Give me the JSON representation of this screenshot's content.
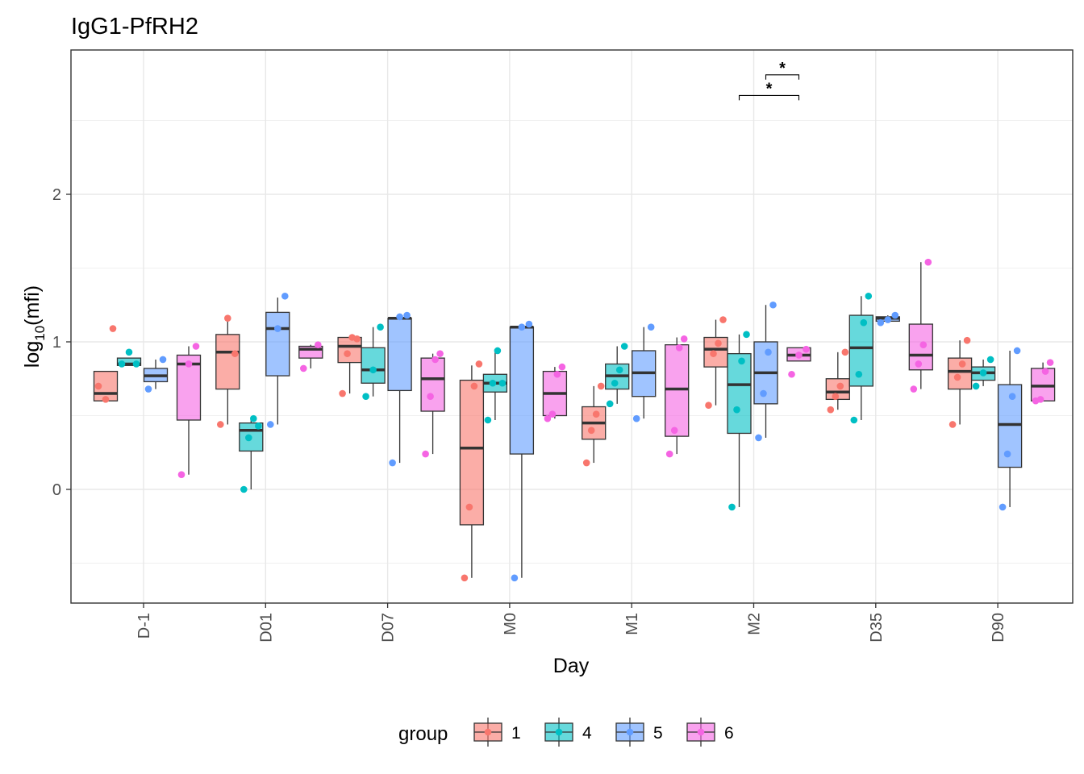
{
  "chart_data": {
    "type": "boxplot",
    "title": "IgG1-PfRH2",
    "xlabel": "Day",
    "ylabel_main": "log",
    "ylabel_sub": "10",
    "ylabel_rest": "(mfi)",
    "categories": [
      "D-1",
      "D01",
      "D07",
      "M0",
      "M1",
      "M2",
      "D35",
      "D90"
    ],
    "ylim": [
      -0.75,
      2.98
    ],
    "yticks": [
      0,
      1,
      2
    ],
    "grid": true,
    "legend": {
      "title": "group",
      "position": "bottom"
    },
    "series": [
      {
        "name": "1",
        "color": "#F8766D",
        "fill": "#FBAEA8",
        "boxes": [
          {
            "min": 0.6,
            "q1": 0.6,
            "median": 0.65,
            "q3": 0.8,
            "max": 0.8,
            "points": [
              0.7,
              0.61,
              1.09
            ]
          },
          {
            "min": 0.44,
            "q1": 0.68,
            "median": 0.93,
            "q3": 1.05,
            "max": 1.15,
            "points": [
              0.44,
              1.16,
              0.92
            ]
          },
          {
            "min": 0.65,
            "q1": 0.86,
            "median": 0.97,
            "q3": 1.03,
            "max": 1.03,
            "points": [
              0.65,
              0.92,
              1.03,
              1.02
            ]
          },
          {
            "min": -0.6,
            "q1": -0.24,
            "median": 0.28,
            "q3": 0.74,
            "max": 0.84,
            "points": [
              -0.6,
              -0.12,
              0.7,
              0.85
            ]
          },
          {
            "min": 0.18,
            "q1": 0.34,
            "median": 0.45,
            "q3": 0.56,
            "max": 0.7,
            "points": [
              0.18,
              0.4,
              0.51,
              0.7
            ]
          },
          {
            "min": 0.57,
            "q1": 0.83,
            "median": 0.95,
            "q3": 1.03,
            "max": 1.15,
            "points": [
              0.57,
              0.92,
              0.99,
              1.15
            ]
          },
          {
            "min": 0.54,
            "q1": 0.61,
            "median": 0.66,
            "q3": 0.75,
            "max": 0.93,
            "points": [
              0.54,
              0.63,
              0.7,
              0.93
            ]
          },
          {
            "min": 0.44,
            "q1": 0.68,
            "median": 0.8,
            "q3": 0.89,
            "max": 1.01,
            "points": [
              0.44,
              0.76,
              0.85,
              1.01
            ]
          }
        ]
      },
      {
        "name": "4",
        "color": "#00BFC4",
        "fill": "#66D9DC",
        "boxes": [
          {
            "min": 0.84,
            "q1": 0.84,
            "median": 0.85,
            "q3": 0.89,
            "max": 0.89,
            "points": [
              0.85,
              0.93,
              0.85
            ]
          },
          {
            "min": 0.0,
            "q1": 0.26,
            "median": 0.4,
            "q3": 0.45,
            "max": 0.48,
            "points": [
              0.0,
              0.35,
              0.48,
              0.43
            ]
          },
          {
            "min": 0.63,
            "q1": 0.72,
            "median": 0.81,
            "q3": 0.96,
            "max": 1.1,
            "points": [
              0.63,
              0.81,
              1.1
            ]
          },
          {
            "min": 0.47,
            "q1": 0.66,
            "median": 0.72,
            "q3": 0.78,
            "max": 0.94,
            "points": [
              0.47,
              0.72,
              0.94,
              0.72
            ]
          },
          {
            "min": 0.58,
            "q1": 0.68,
            "median": 0.77,
            "q3": 0.85,
            "max": 0.97,
            "points": [
              0.58,
              0.72,
              0.81,
              0.97
            ]
          },
          {
            "min": -0.12,
            "q1": 0.38,
            "median": 0.71,
            "q3": 0.92,
            "max": 1.05,
            "points": [
              -0.12,
              0.54,
              0.87,
              1.05
            ]
          },
          {
            "min": 0.47,
            "q1": 0.7,
            "median": 0.96,
            "q3": 1.18,
            "max": 1.31,
            "points": [
              0.47,
              0.78,
              1.13,
              1.31
            ]
          },
          {
            "min": 0.7,
            "q1": 0.74,
            "median": 0.79,
            "q3": 0.83,
            "max": 0.88,
            "points": [
              0.7,
              0.79,
              0.88
            ]
          }
        ]
      },
      {
        "name": "5",
        "color": "#619CFF",
        "fill": "#A0C4FF",
        "boxes": [
          {
            "min": 0.68,
            "q1": 0.73,
            "median": 0.77,
            "q3": 0.82,
            "max": 0.88,
            "points": [
              0.68,
              0.88
            ]
          },
          {
            "min": 0.44,
            "q1": 0.77,
            "median": 1.09,
            "q3": 1.2,
            "max": 1.3,
            "points": [
              0.44,
              1.09,
              1.31
            ]
          },
          {
            "min": 0.18,
            "q1": 0.67,
            "median": 1.16,
            "q3": 1.16,
            "max": 1.18,
            "points": [
              0.18,
              1.17,
              1.18
            ]
          },
          {
            "min": -0.6,
            "q1": 0.24,
            "median": 1.1,
            "q3": 1.1,
            "max": 1.12,
            "points": [
              -0.6,
              1.1,
              1.12
            ]
          },
          {
            "min": 0.48,
            "q1": 0.63,
            "median": 0.79,
            "q3": 0.94,
            "max": 1.1,
            "points": [
              0.48,
              1.1
            ]
          },
          {
            "min": 0.35,
            "q1": 0.58,
            "median": 0.79,
            "q3": 1.0,
            "max": 1.25,
            "points": [
              0.35,
              0.65,
              0.93,
              1.25
            ]
          },
          {
            "min": 1.13,
            "q1": 1.14,
            "median": 1.16,
            "q3": 1.17,
            "max": 1.18,
            "points": [
              1.13,
              1.15,
              1.18
            ]
          },
          {
            "min": -0.12,
            "q1": 0.15,
            "median": 0.44,
            "q3": 0.71,
            "max": 0.94,
            "points": [
              -0.12,
              0.24,
              0.63,
              0.94
            ]
          }
        ]
      },
      {
        "name": "6",
        "color": "#F564E3",
        "fill": "#F9A2EE",
        "boxes": [
          {
            "min": 0.1,
            "q1": 0.47,
            "median": 0.85,
            "q3": 0.91,
            "max": 0.97,
            "points": [
              0.1,
              0.85,
              0.97
            ]
          },
          {
            "min": 0.82,
            "q1": 0.89,
            "median": 0.95,
            "q3": 0.97,
            "max": 0.98,
            "points": [
              0.82,
              0.98
            ]
          },
          {
            "min": 0.24,
            "q1": 0.53,
            "median": 0.75,
            "q3": 0.89,
            "max": 0.92,
            "points": [
              0.24,
              0.63,
              0.88,
              0.92
            ]
          },
          {
            "min": 0.48,
            "q1": 0.5,
            "median": 0.65,
            "q3": 0.8,
            "max": 0.83,
            "points": [
              0.48,
              0.51,
              0.78,
              0.83
            ]
          },
          {
            "min": 0.24,
            "q1": 0.36,
            "median": 0.68,
            "q3": 0.98,
            "max": 1.03,
            "points": [
              0.24,
              0.4,
              0.96,
              1.02
            ]
          },
          {
            "min": 0.87,
            "q1": 0.87,
            "median": 0.91,
            "q3": 0.96,
            "max": 0.96,
            "points": [
              0.78,
              0.91,
              0.95
            ]
          },
          {
            "min": 0.68,
            "q1": 0.81,
            "median": 0.91,
            "q3": 1.12,
            "max": 1.54,
            "points": [
              0.68,
              0.85,
              0.98,
              1.54
            ]
          },
          {
            "min": 0.6,
            "q1": 0.6,
            "median": 0.7,
            "q3": 0.82,
            "max": 0.86,
            "points": [
              0.6,
              0.61,
              0.8,
              0.86
            ]
          }
        ]
      }
    ],
    "annotations": [
      {
        "category": "M2",
        "from_group": "4",
        "to_group": "6",
        "label": "*",
        "y": 2.67
      },
      {
        "category": "M2",
        "from_group": "5",
        "to_group": "6",
        "label": "*",
        "y": 2.81
      }
    ]
  }
}
